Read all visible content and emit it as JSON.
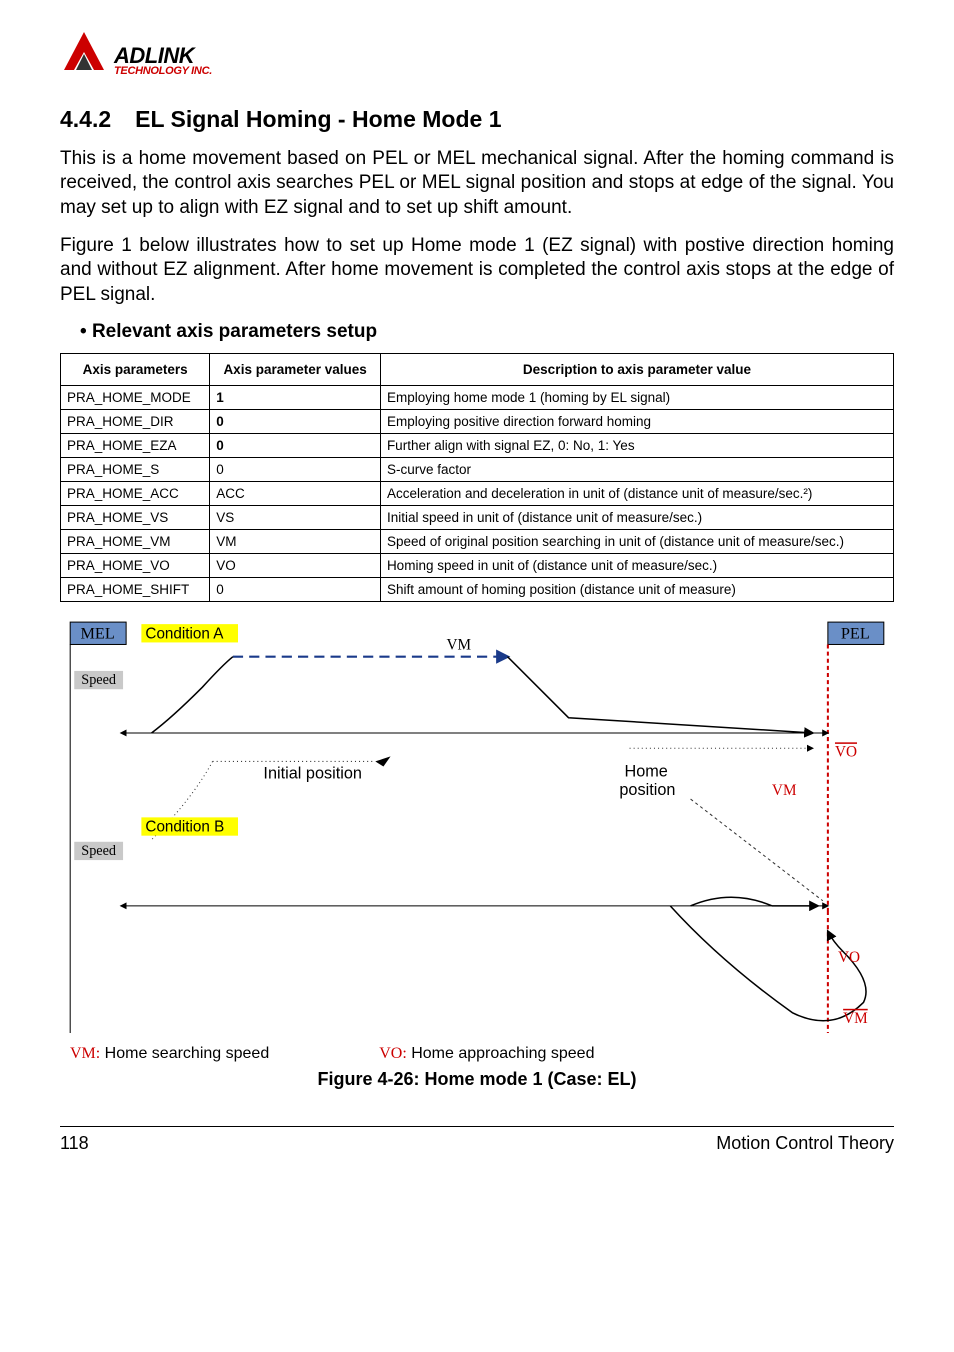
{
  "logo": {
    "main": "ADLINK",
    "sub": "TECHNOLOGY INC."
  },
  "section": {
    "number": "4.4.2",
    "title": "EL Signal Homing - Home Mode 1"
  },
  "paragraphs": {
    "p1": "This is a home movement based on PEL or MEL mechanical signal. After the homing command is received, the control axis searches PEL or MEL signal position and stops at edge of the signal. You may set up to align with EZ signal and to set up shift amount.",
    "p2": "Figure 1 below illustrates how to set up Home mode 1 (EZ signal) with postive direction homing and without EZ alignment. After home movement is completed the control axis stops at the edge of PEL signal."
  },
  "subheading": "Relevant axis parameters setup",
  "table": {
    "headers": [
      "Axis parameters",
      "Axis parameter values",
      "Description to axis parameter value"
    ],
    "rows": [
      {
        "p": "PRA_HOME_MODE",
        "v": "1",
        "d": "Employing home mode 1 (homing by EL signal)",
        "bold": true
      },
      {
        "p": "PRA_HOME_DIR",
        "v": "0",
        "d": "Employing positive direction forward homing",
        "bold": true
      },
      {
        "p": "PRA_HOME_EZA",
        "v": "0",
        "d": "Further align with signal EZ, 0: No, 1: Yes",
        "bold": true
      },
      {
        "p": "PRA_HOME_S",
        "v": "0",
        "d": "S-curve factor",
        "bold": false
      },
      {
        "p": "PRA_HOME_ACC",
        "v": "ACC",
        "d": "Acceleration and deceleration in unit of (distance unit of measure/sec.²)",
        "bold": false
      },
      {
        "p": "PRA_HOME_VS",
        "v": "VS",
        "d": "Initial speed in unit of (distance unit of measure/sec.)",
        "bold": false
      },
      {
        "p": "PRA_HOME_VM",
        "v": "VM",
        "d": "Speed of original position searching in unit of (distance unit of measure/sec.)",
        "bold": false
      },
      {
        "p": "PRA_HOME_VO",
        "v": "VO",
        "d": "Homing speed in unit of (distance unit of measure/sec.)",
        "bold": false
      },
      {
        "p": "PRA_HOME_SHIFT",
        "v": "0",
        "d": "Shift amount of homing position (distance unit of measure)",
        "bold": false
      }
    ]
  },
  "figure": {
    "labels": {
      "mel": "MEL",
      "pel": "PEL",
      "condA": "Condition A",
      "condB": "Condition B",
      "speed": "Speed",
      "initial": "Initial position",
      "home": "Home\nposition",
      "vm": "VM",
      "vo": "VO"
    },
    "colors": {
      "pel_fill": "#6a8fc7",
      "mel_fill": "#6a8fc7",
      "hl": "#ffff00",
      "dash": "#1a3a8a",
      "red": "#cc0000",
      "dotted": "#333333"
    },
    "legend": {
      "vm": "VM:",
      "vmText": " Home searching speed",
      "vo": "VO:",
      "voText": " Home approaching speed"
    },
    "caption": "Figure 4-26: Home mode 1 (Case:  EL)"
  },
  "footer": {
    "page": "118",
    "chapter": "Motion Control Theory"
  }
}
